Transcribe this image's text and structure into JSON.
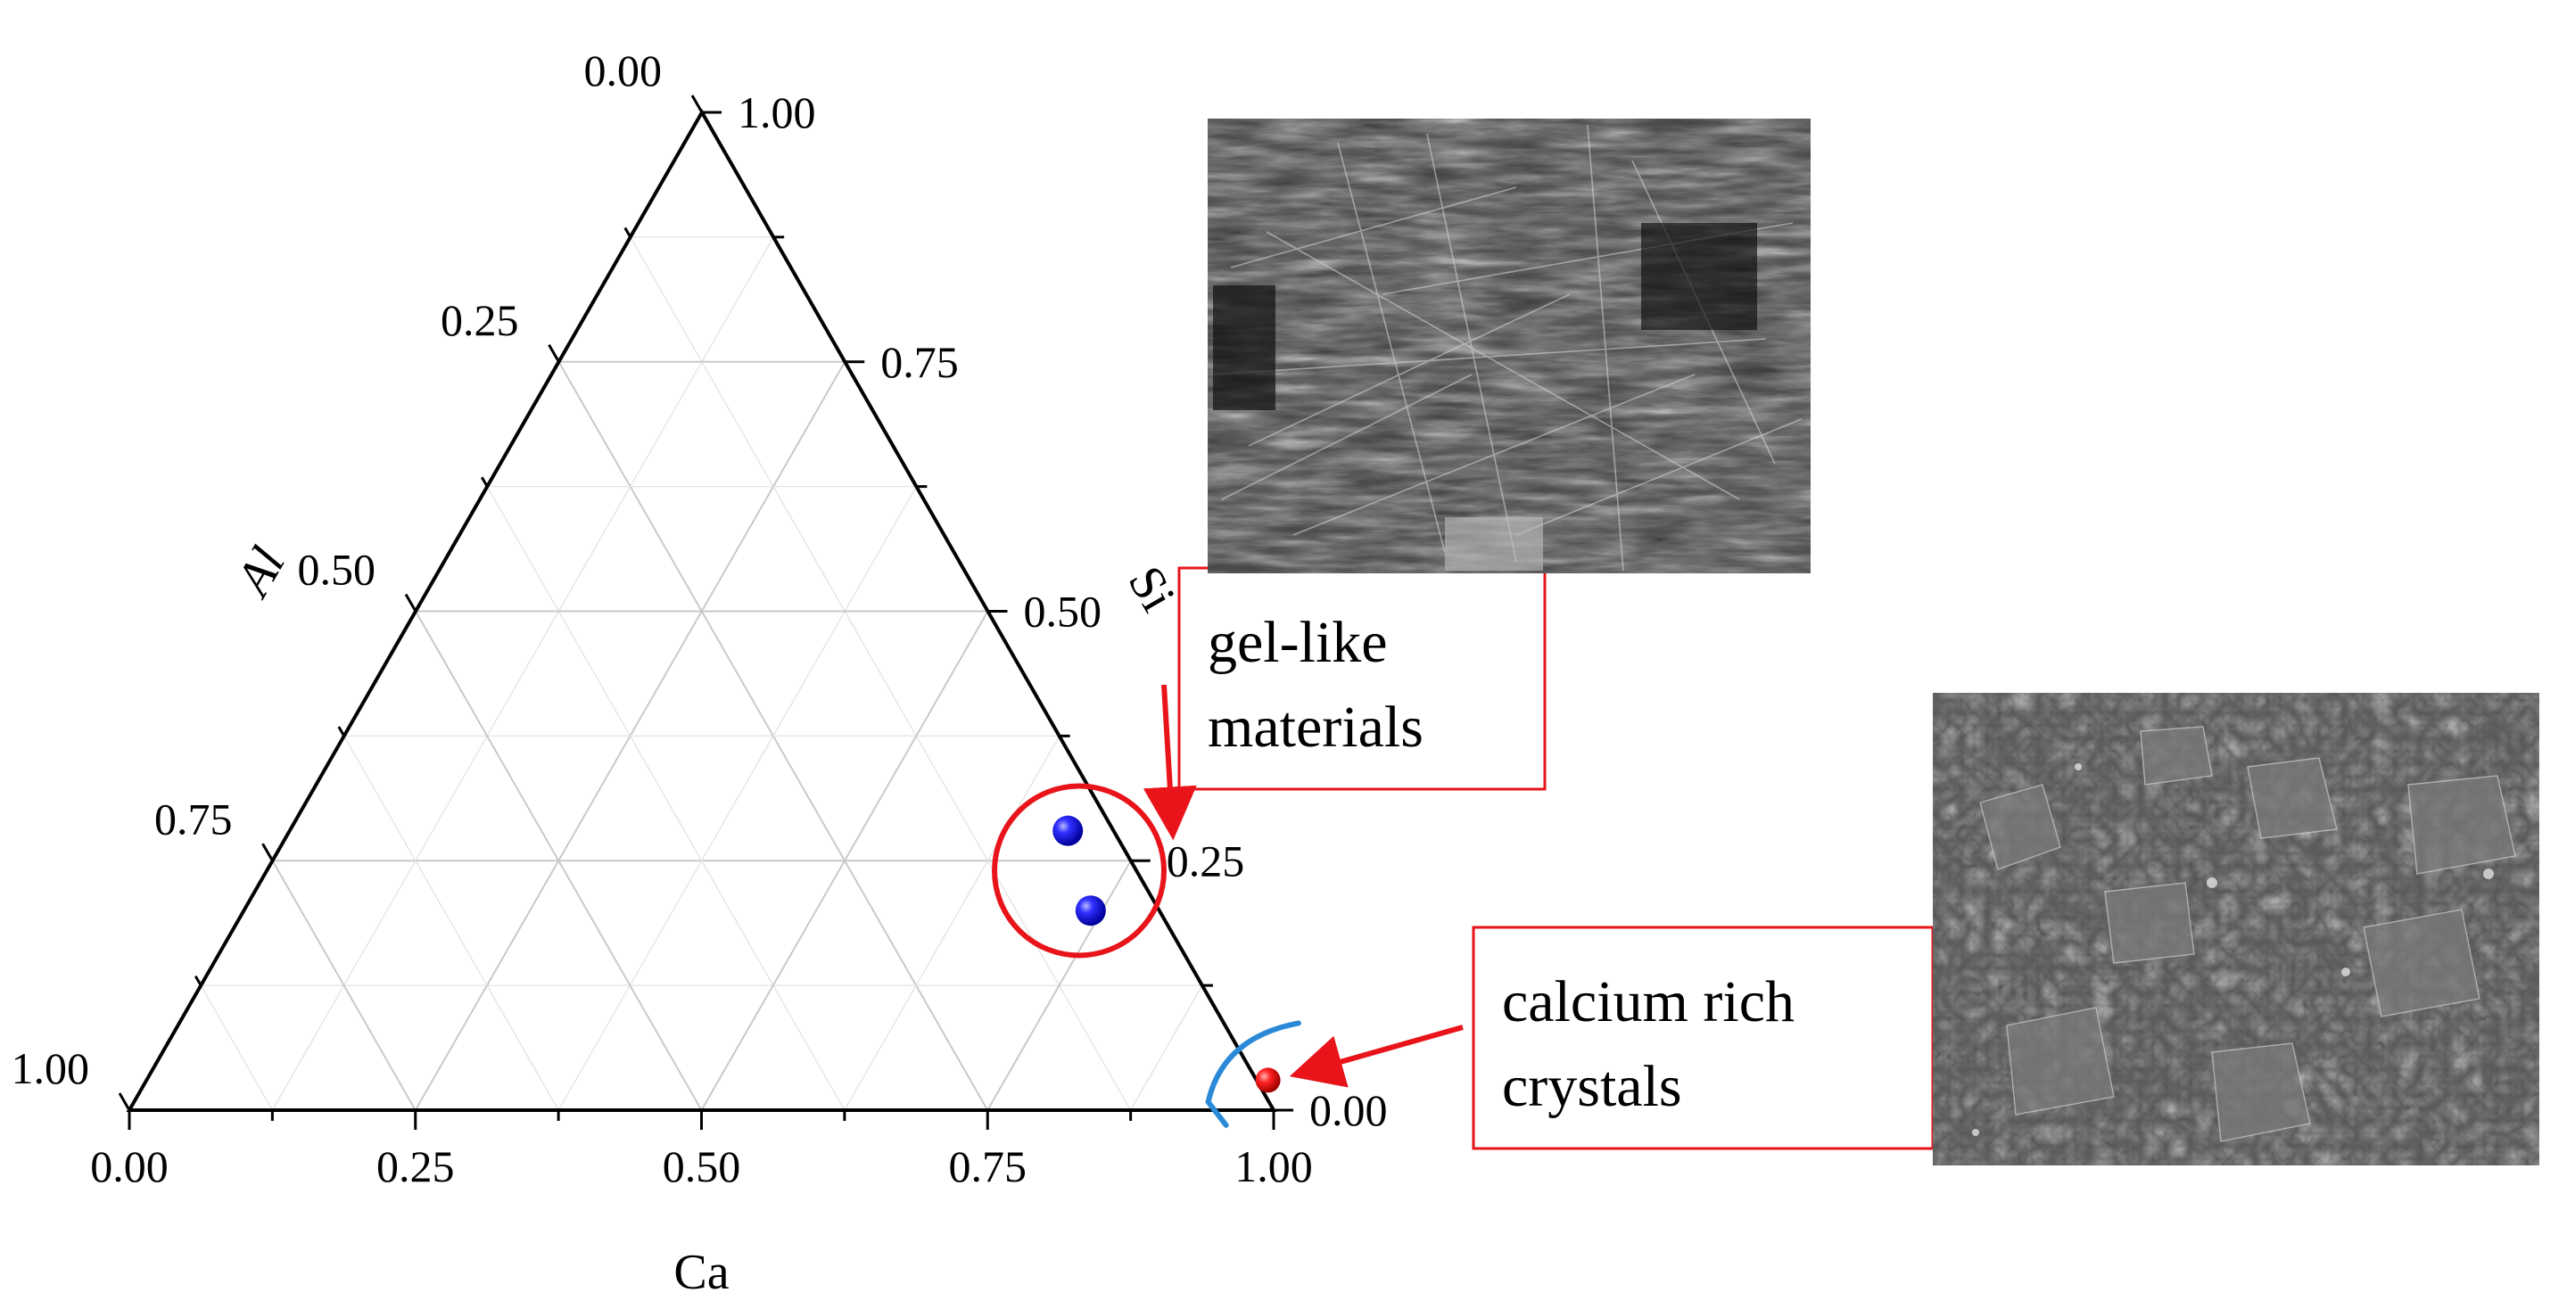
{
  "chart_data": {
    "type": "scatter",
    "subtype": "ternary",
    "axes": {
      "bottom": {
        "label": "Ca",
        "ticks": [
          "0.00",
          "0.25",
          "0.50",
          "0.75",
          "1.00"
        ]
      },
      "right": {
        "label": "Si",
        "ticks": [
          "0.00",
          "0.25",
          "0.50",
          "0.75",
          "1.00"
        ]
      },
      "left": {
        "label": "Al",
        "ticks": [
          "0.00",
          "0.25",
          "0.50",
          "0.75",
          "1.00"
        ]
      }
    },
    "grid": true,
    "series": [
      {
        "color": "#1a1aff",
        "points": [
          {
            "Ca": 0.68,
            "Si": 0.28,
            "Al": 0.04
          },
          {
            "Ca": 0.74,
            "Si": 0.2,
            "Al": 0.06
          }
        ]
      },
      {
        "color": "#e02020",
        "points": [
          {
            "Ca": 0.98,
            "Si": 0.03,
            "Al": -0.01
          }
        ]
      }
    ],
    "annotations": [
      {
        "id": "gel",
        "text_lines": [
          "gel-like",
          "materials"
        ],
        "color": "#e8141a"
      },
      {
        "id": "calcium",
        "text_lines": [
          "calcium rich",
          "crystals"
        ],
        "color": "#e8141a"
      }
    ]
  },
  "images": [
    {
      "name": "sem-fibrous",
      "description_icon": "sem-micrograph-fibrous"
    },
    {
      "name": "sem-crystalline",
      "description_icon": "sem-micrograph-crystalline"
    }
  ]
}
